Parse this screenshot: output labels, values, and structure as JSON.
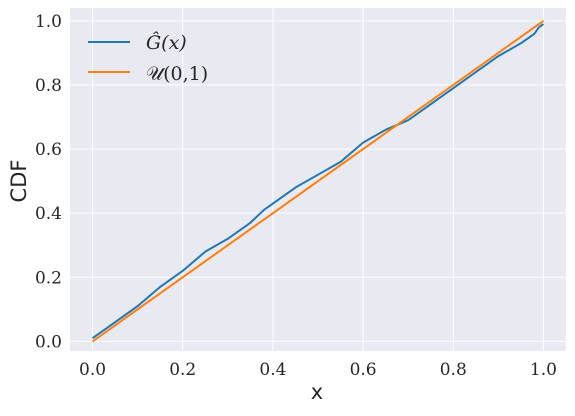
{
  "chart_data": {
    "type": "line",
    "xlabel": "x",
    "ylabel": "CDF",
    "xlim": [
      -0.05,
      1.05
    ],
    "ylim": [
      -0.03,
      1.04
    ],
    "grid": true,
    "legend_position": "top-left",
    "background_color": "#e9e9f1",
    "xticks": [
      0.0,
      0.2,
      0.4,
      0.6,
      0.8,
      1.0
    ],
    "xtick_labels": [
      "0.0",
      "0.2",
      "0.4",
      "0.6",
      "0.8",
      "1.0"
    ],
    "yticks": [
      0.0,
      0.2,
      0.4,
      0.6,
      0.8,
      1.0
    ],
    "ytick_labels": [
      "0.0",
      "0.2",
      "0.4",
      "0.6",
      "0.8",
      "1.0"
    ],
    "series": [
      {
        "name": "Ĝ(x)",
        "color": "#1f77b4",
        "x": [
          0.0,
          0.02,
          0.05,
          0.08,
          0.1,
          0.15,
          0.2,
          0.25,
          0.3,
          0.35,
          0.38,
          0.4,
          0.45,
          0.5,
          0.55,
          0.6,
          0.65,
          0.7,
          0.75,
          0.8,
          0.85,
          0.9,
          0.95,
          0.98,
          0.99,
          1.0
        ],
        "y": [
          0.01,
          0.03,
          0.06,
          0.09,
          0.11,
          0.17,
          0.22,
          0.28,
          0.32,
          0.37,
          0.41,
          0.43,
          0.48,
          0.52,
          0.56,
          0.62,
          0.66,
          0.69,
          0.74,
          0.79,
          0.84,
          0.89,
          0.93,
          0.96,
          0.98,
          0.99
        ]
      },
      {
        "name": "𝒰(0,1)",
        "color": "#ff7f0e",
        "x": [
          0.0,
          1.0
        ],
        "y": [
          0.0,
          1.0
        ]
      }
    ]
  }
}
